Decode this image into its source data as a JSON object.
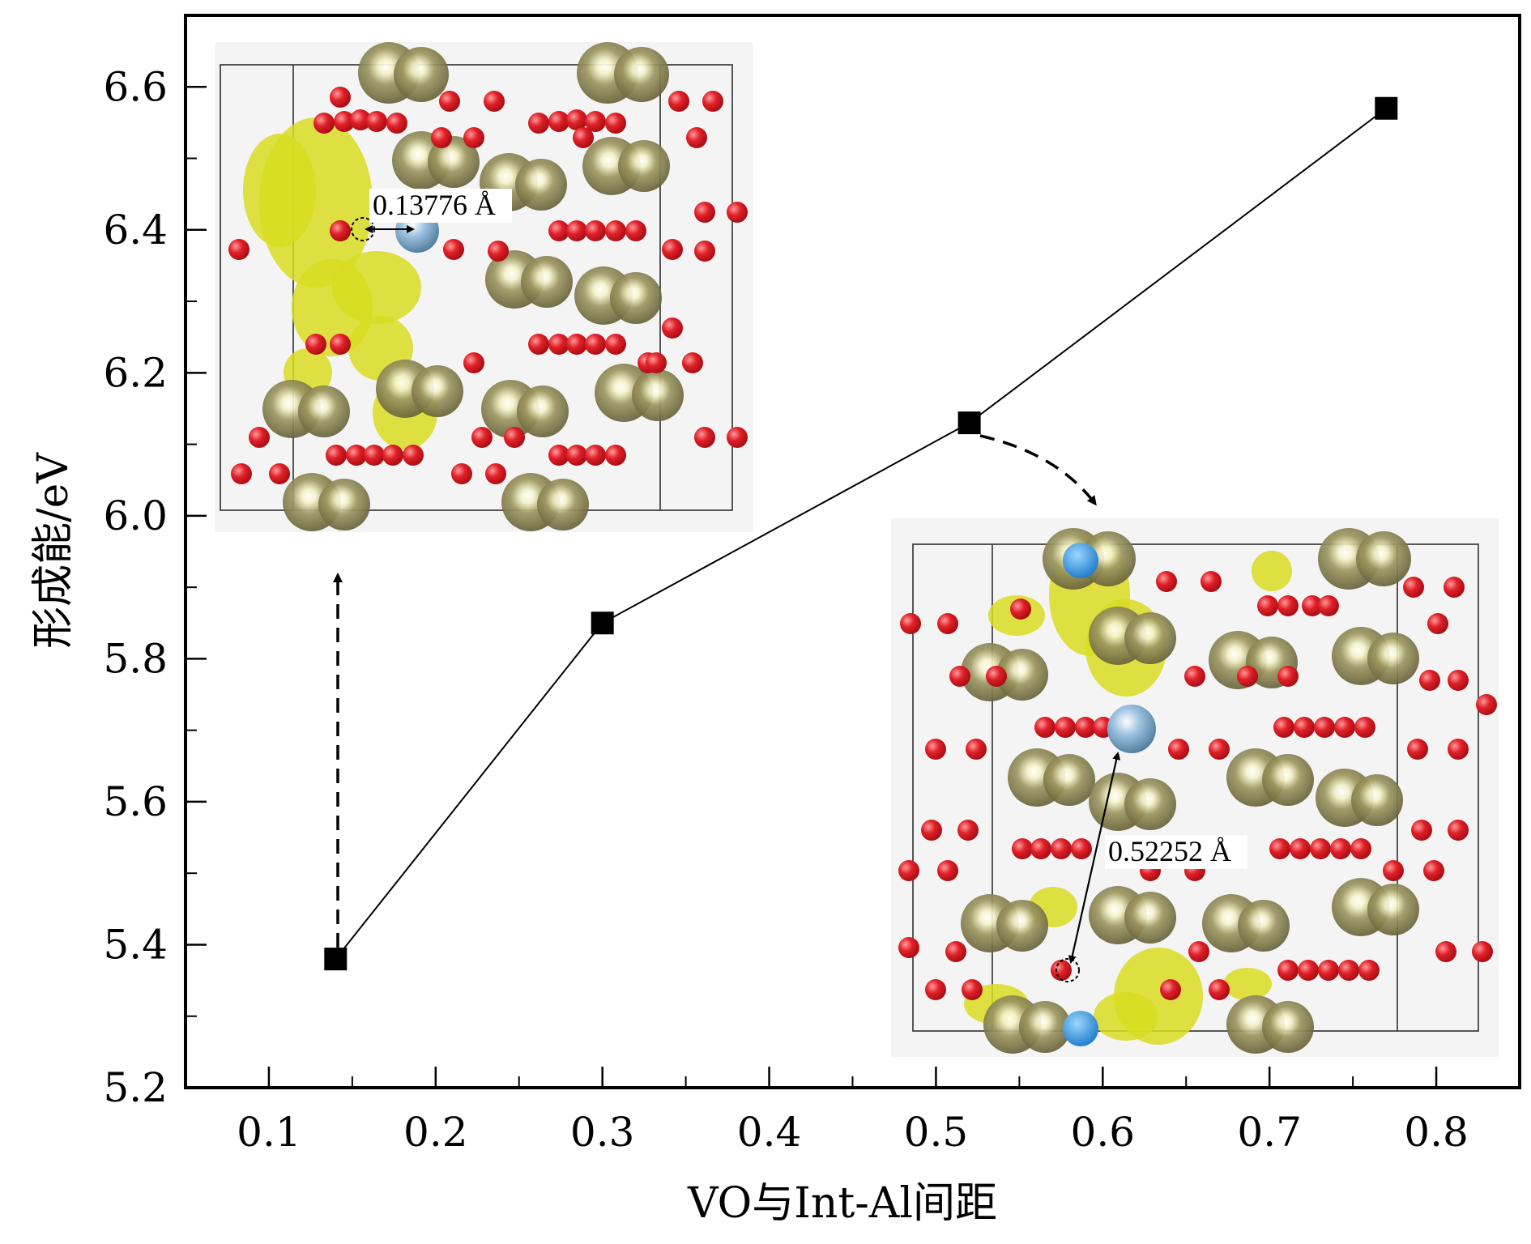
{
  "chart_data": {
    "type": "line",
    "title": "",
    "xlabel": "VO与Int-Al间距",
    "ylabel": "形成能/eV",
    "xlim": [
      0.05,
      0.85
    ],
    "ylim": [
      5.2,
      6.7
    ],
    "x_ticks": [
      "0.1",
      "0.2",
      "0.3",
      "0.4",
      "0.5",
      "0.6",
      "0.7",
      "0.8"
    ],
    "y_ticks": [
      "5.2",
      "5.4",
      "5.6",
      "5.8",
      "6.0",
      "6.2",
      "6.4",
      "6.6"
    ],
    "grid": false,
    "legend": "none",
    "series": [
      {
        "x": [
          0.14,
          0.3,
          0.52,
          0.77
        ],
        "y": [
          5.38,
          5.85,
          6.13,
          6.57
        ],
        "marker": "square",
        "color": "#000000"
      }
    ],
    "annotations": {
      "inset1_distance": "0.13776 Å",
      "inset2_distance": "0.52252 Å"
    }
  },
  "colors": {
    "oxygen": "#d8141c",
    "aluminum": "#8a8450",
    "interstitial": "#8fb4d4",
    "isosurface": "#d8dc20",
    "inset_bg": "#f4f4f4"
  }
}
